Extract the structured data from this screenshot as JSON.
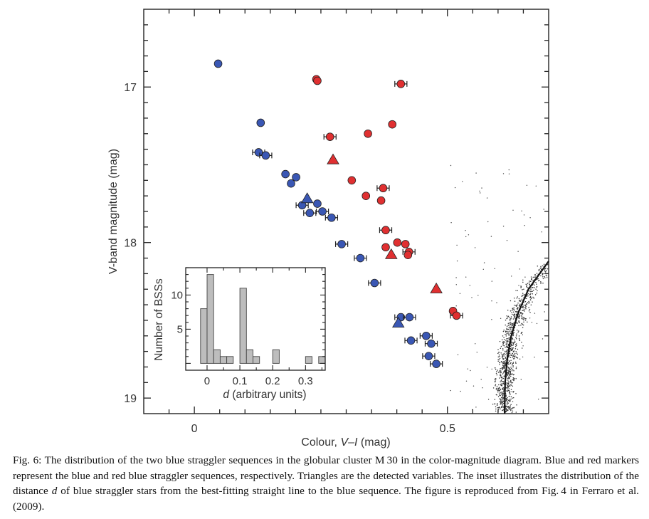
{
  "chart_data": [
    {
      "type": "scatter",
      "xlabel_prefix": "Colour, ",
      "xlabel_var": "V–I",
      "xlabel_unit": " (mag)",
      "ylabel": "V-band magnitude (mag)",
      "xlim": [
        -0.1,
        0.7
      ],
      "ylim": [
        19.1,
        16.5
      ],
      "y_inverted": true,
      "x_ticks": [
        0,
        0.5
      ],
      "x_tick_labels": [
        "0",
        "0.5"
      ],
      "y_ticks": [
        17,
        18,
        19
      ],
      "y_tick_labels": [
        "17",
        "18",
        "19"
      ],
      "colors": {
        "blue": "#3a57b4",
        "red": "#e03031",
        "outline": "#222222"
      },
      "series": [
        {
          "marker": "circle",
          "color": "blue",
          "points": [
            [
              0.047,
              16.85,
              0
            ],
            [
              0.131,
              17.23,
              0
            ],
            [
              0.127,
              17.42,
              1
            ],
            [
              0.141,
              17.44,
              1
            ],
            [
              0.18,
              17.56,
              0
            ],
            [
              0.201,
              17.58,
              0
            ],
            [
              0.191,
              17.62,
              0
            ],
            [
              0.213,
              17.76,
              1
            ],
            [
              0.243,
              17.75,
              0
            ],
            [
              0.228,
              17.81,
              1
            ],
            [
              0.253,
              17.8,
              1
            ],
            [
              0.271,
              17.84,
              1
            ],
            [
              0.291,
              18.01,
              1
            ],
            [
              0.328,
              18.1,
              1
            ],
            [
              0.356,
              18.26,
              1
            ],
            [
              0.408,
              18.48,
              1
            ],
            [
              0.425,
              18.48,
              1
            ],
            [
              0.458,
              18.6,
              1
            ],
            [
              0.428,
              18.63,
              1
            ],
            [
              0.468,
              18.65,
              1
            ],
            [
              0.463,
              18.73,
              1
            ],
            [
              0.478,
              18.78,
              1
            ]
          ]
        },
        {
          "marker": "triangle",
          "color": "blue",
          "points": [
            [
              0.223,
              17.72,
              0
            ],
            [
              0.403,
              18.52,
              0
            ]
          ]
        },
        {
          "marker": "circle",
          "color": "red",
          "points": [
            [
              0.241,
              16.95,
              0
            ],
            [
              0.243,
              16.96,
              0
            ],
            [
              0.408,
              16.98,
              1
            ],
            [
              0.268,
              17.32,
              1
            ],
            [
              0.343,
              17.3,
              0
            ],
            [
              0.391,
              17.24,
              0
            ],
            [
              0.311,
              17.6,
              0
            ],
            [
              0.373,
              17.65,
              1
            ],
            [
              0.339,
              17.7,
              0
            ],
            [
              0.369,
              17.73,
              0
            ],
            [
              0.378,
              17.92,
              1
            ],
            [
              0.401,
              18.0,
              0
            ],
            [
              0.378,
              18.03,
              0
            ],
            [
              0.417,
              18.01,
              0
            ],
            [
              0.424,
              18.06,
              1
            ],
            [
              0.422,
              18.08,
              0
            ],
            [
              0.511,
              18.44,
              0
            ],
            [
              0.518,
              18.47,
              1
            ]
          ]
        },
        {
          "marker": "triangle",
          "color": "red",
          "points": [
            [
              0.274,
              17.47,
              0
            ],
            [
              0.389,
              18.08,
              0
            ],
            [
              0.478,
              18.3,
              0
            ]
          ]
        }
      ],
      "fiducial_line": [
        [
          0.7,
          18.12
        ],
        [
          0.66,
          18.3
        ],
        [
          0.64,
          18.45
        ],
        [
          0.626,
          18.6
        ],
        [
          0.618,
          18.75
        ],
        [
          0.614,
          18.9
        ],
        [
          0.613,
          19.1
        ]
      ]
    },
    {
      "type": "bar",
      "inset": true,
      "ylabel": "Number of BSSs",
      "xlabel_var": "d",
      "xlabel_rest": " (arbitrary units)",
      "xlim": [
        -0.065,
        0.36
      ],
      "ylim": [
        -1,
        14
      ],
      "x_ticks": [
        0,
        0.1,
        0.2,
        0.3
      ],
      "x_tick_labels": [
        "0",
        "0.1",
        "0.2",
        "0.3"
      ],
      "y_ticks": [
        5,
        10
      ],
      "y_tick_labels": [
        "5",
        "10"
      ],
      "bin_width": 0.02,
      "bin_starts": [
        -0.02,
        0.0,
        0.02,
        0.04,
        0.06,
        0.08,
        0.1,
        0.12,
        0.14,
        0.16,
        0.18,
        0.2,
        0.22,
        0.24,
        0.26,
        0.28,
        0.3,
        0.32,
        0.34
      ],
      "values": [
        8,
        13,
        2,
        1,
        1,
        0,
        11,
        2,
        1,
        0,
        0,
        2,
        0,
        0,
        0,
        0,
        1,
        0,
        1
      ],
      "bar_color": "#bdbdbd"
    }
  ],
  "caption": {
    "part1": "Fig. 6: The distribution of the two blue straggler sequences in the globular cluster M 30 in the color-magnitude diagram. Blue and red markers represent the blue and red blue straggler sequences, respectively. Triangles are the detected variables. The inset illustrates the distribution of the distance ",
    "var": "d",
    "part2": " of blue straggler stars from the best-fitting straight line to the blue sequence. The figure is reproduced from Fig. 4 in Ferraro et al. (2009)."
  }
}
